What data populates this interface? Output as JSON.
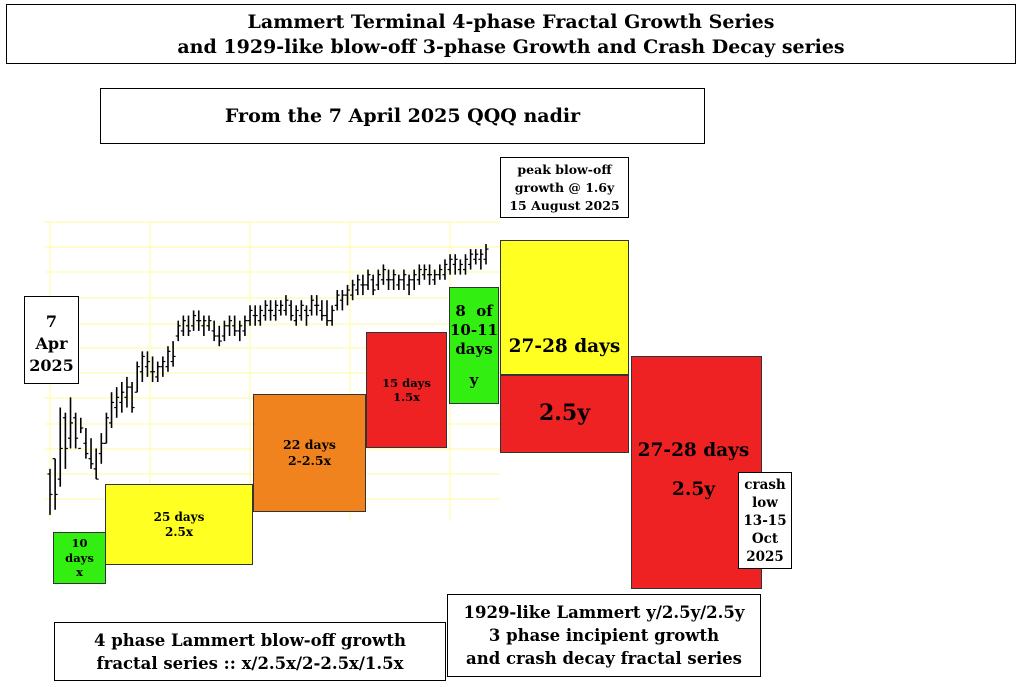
{
  "header": {
    "title_line1": "Lammert Terminal 4-phase Fractal Growth Series",
    "title_line2": "and 1929-like blow-off 3-phase Growth and Crash Decay series",
    "subtitle": "From the 7 April 2025 QQQ nadir"
  },
  "annotations": {
    "start_date": [
      "7",
      "Apr",
      "2025"
    ],
    "peak": [
      "peak blow-off",
      "growth @ 1.6y",
      "15 August 2025"
    ],
    "crash_low": [
      "crash",
      "low",
      "13-15",
      "Oct",
      "2025"
    ]
  },
  "phases": [
    {
      "lines": [
        "10",
        "days",
        "x"
      ],
      "color": "#33ee11"
    },
    {
      "lines": [
        "25 days",
        "2.5x"
      ],
      "color": "#ffff22"
    },
    {
      "lines": [
        "22 days",
        "2-2.5x"
      ],
      "color": "#f0831e"
    },
    {
      "lines": [
        "15 days",
        "1.5x"
      ],
      "color": "#ee2222"
    },
    {
      "lines": [
        "8  of",
        "10-11",
        "days",
        "",
        "y"
      ],
      "color": "#33ee11"
    },
    {
      "lines": [
        "27-28 days"
      ],
      "color": "#ffff22"
    },
    {
      "lines": [
        "2.5y"
      ],
      "color": "#ee2222"
    },
    {
      "lines": [
        "27-28 days",
        "",
        "2.5y"
      ],
      "color": "#ee2222"
    }
  ],
  "footer": {
    "growth_series": [
      "4 phase Lammert blow-off growth",
      "fractal series :: x/2.5x/2-2.5x/1.5x"
    ],
    "decay_series": [
      "1929-like Lammert y/2.5y/2.5y",
      "3 phase incipient growth",
      "and crash decay fractal series"
    ]
  },
  "chart_data": {
    "type": "ohlc",
    "title": "",
    "note": "daily price bars (relative level, 0 = nadir)",
    "grid": true,
    "grid_color": "#fffaa0",
    "ylim": [
      0,
      100
    ],
    "bars": [
      [
        20,
        2,
        18,
        10
      ],
      [
        24,
        4,
        24,
        10
      ],
      [
        44,
        13,
        16,
        28
      ],
      [
        42,
        20,
        40,
        28
      ],
      [
        48,
        28,
        32,
        38
      ],
      [
        42,
        28,
        40,
        32
      ],
      [
        40,
        34,
        28,
        36
      ],
      [
        36,
        24,
        30,
        26
      ],
      [
        32,
        20,
        24,
        22
      ],
      [
        28,
        16,
        20,
        16
      ],
      [
        34,
        22,
        26,
        30
      ],
      [
        42,
        30,
        30,
        40
      ],
      [
        50,
        36,
        38,
        46
      ],
      [
        52,
        40,
        44,
        48
      ],
      [
        54,
        42,
        46,
        50
      ],
      [
        56,
        44,
        48,
        52
      ],
      [
        54,
        42,
        52,
        44
      ],
      [
        62,
        50,
        50,
        60
      ],
      [
        66,
        54,
        58,
        64
      ],
      [
        66,
        56,
        60,
        62
      ],
      [
        64,
        54,
        58,
        58
      ],
      [
        62,
        54,
        56,
        60
      ],
      [
        64,
        56,
        60,
        62
      ],
      [
        68,
        58,
        60,
        66
      ],
      [
        70,
        60,
        62,
        64
      ],
      [
        78,
        70,
        72,
        76
      ],
      [
        80,
        72,
        74,
        78
      ],
      [
        80,
        72,
        76,
        74
      ],
      [
        82,
        74,
        76,
        80
      ],
      [
        82,
        74,
        78,
        78
      ],
      [
        80,
        72,
        76,
        78
      ],
      [
        80,
        74,
        76,
        78
      ],
      [
        78,
        70,
        74,
        72
      ],
      [
        76,
        68,
        72,
        70
      ],
      [
        78,
        70,
        72,
        76
      ],
      [
        80,
        72,
        76,
        78
      ],
      [
        80,
        72,
        76,
        74
      ],
      [
        78,
        70,
        74,
        76
      ],
      [
        80,
        72,
        74,
        78
      ],
      [
        84,
        76,
        78,
        82
      ],
      [
        84,
        76,
        80,
        80
      ],
      [
        84,
        76,
        78,
        82
      ],
      [
        86,
        78,
        80,
        84
      ],
      [
        86,
        78,
        82,
        82
      ],
      [
        86,
        78,
        80,
        84
      ],
      [
        86,
        80,
        82,
        84
      ],
      [
        88,
        80,
        82,
        86
      ],
      [
        86,
        78,
        84,
        80
      ],
      [
        84,
        76,
        78,
        82
      ],
      [
        86,
        78,
        80,
        84
      ],
      [
        84,
        76,
        82,
        80
      ],
      [
        88,
        80,
        82,
        86
      ],
      [
        88,
        80,
        84,
        84
      ],
      [
        86,
        78,
        82,
        80
      ],
      [
        86,
        76,
        80,
        78
      ],
      [
        84,
        76,
        78,
        82
      ],
      [
        90,
        82,
        84,
        88
      ],
      [
        90,
        82,
        86,
        88
      ],
      [
        92,
        84,
        88,
        90
      ],
      [
        94,
        86,
        88,
        92
      ],
      [
        96,
        88,
        90,
        94
      ],
      [
        96,
        88,
        92,
        92
      ],
      [
        98,
        90,
        92,
        96
      ],
      [
        96,
        88,
        94,
        90
      ],
      [
        98,
        90,
        92,
        96
      ],
      [
        100,
        92,
        94,
        98
      ],
      [
        98,
        90,
        94,
        94
      ],
      [
        98,
        90,
        94,
        96
      ],
      [
        96,
        90,
        92,
        94
      ],
      [
        98,
        90,
        94,
        96
      ],
      [
        96,
        88,
        92,
        94
      ],
      [
        98,
        90,
        94,
        96
      ],
      [
        100,
        92,
        94,
        98
      ],
      [
        100,
        94,
        96,
        98
      ],
      [
        100,
        92,
        96,
        96
      ],
      [
        98,
        92,
        94,
        96
      ],
      [
        100,
        94,
        96,
        98
      ],
      [
        102,
        94,
        96,
        100
      ],
      [
        104,
        96,
        98,
        102
      ],
      [
        104,
        96,
        100,
        102
      ],
      [
        102,
        96,
        98,
        100
      ],
      [
        104,
        96,
        98,
        102
      ],
      [
        106,
        98,
        100,
        104
      ],
      [
        106,
        100,
        102,
        104
      ],
      [
        106,
        98,
        102,
        104
      ],
      [
        108,
        100,
        102,
        106
      ]
    ]
  }
}
